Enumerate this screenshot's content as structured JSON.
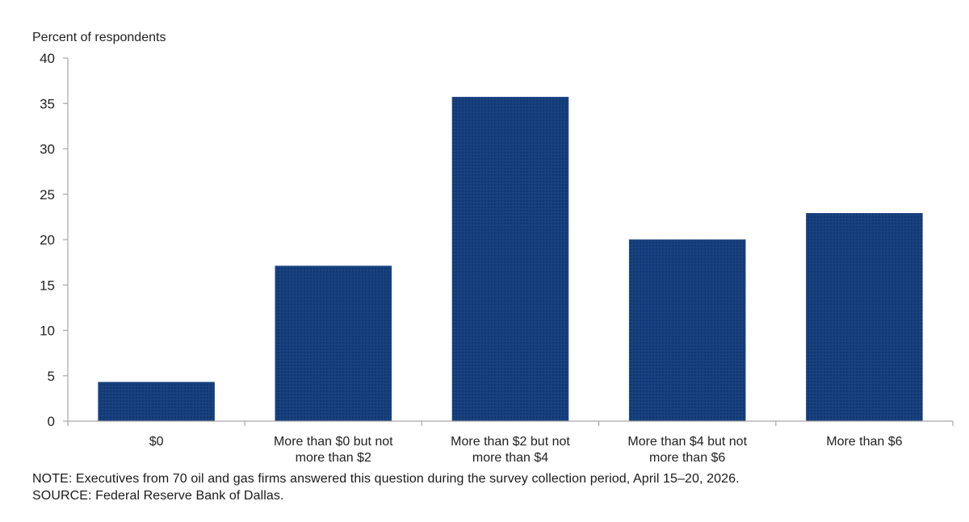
{
  "chart_data": {
    "type": "bar",
    "title": "",
    "ylabel": "Percent of respondents",
    "xlabel": "",
    "ylim": [
      0,
      40
    ],
    "yticks": [
      0,
      5,
      10,
      15,
      20,
      25,
      30,
      35,
      40
    ],
    "grid": false,
    "legend": null,
    "categories": [
      "$0",
      "More than $0 but not more than $2",
      "More than $2 but not more than $4",
      "More than $4 but not more than $6",
      "More than $6"
    ],
    "category_lines": [
      [
        "$0"
      ],
      [
        "More than $0 but not",
        "more than $2"
      ],
      [
        "More than $2 but not",
        "more than $4"
      ],
      [
        "More than $4 but not",
        "more than $6"
      ],
      [
        "More than $6"
      ]
    ],
    "values": [
      4.3,
      17.1,
      35.7,
      20.0,
      22.9
    ],
    "bar_color": "#123f7a"
  },
  "footer": {
    "note": "NOTE:  Executives  from 70 oil and gas firms answered  this question  during the survey collection  period, April 15–20,  2026.",
    "source": "SOURCE:  Federal Reserve  Bank of Dallas."
  }
}
